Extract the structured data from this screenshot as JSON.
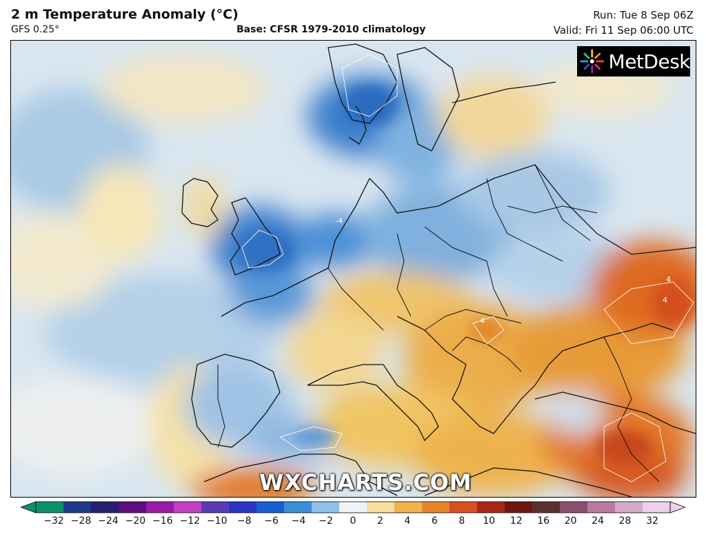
{
  "header": {
    "title": "2 m Temperature Anomaly (°C)",
    "model": "GFS 0.25°",
    "base": "Base: CFSR 1979-2010 climatology",
    "run": "Run: Tue 8 Sep 06Z",
    "valid": "Valid: Fri 11 Sep 06:00 UTC"
  },
  "logo": {
    "text": "MetDesk"
  },
  "watermark": "WXCHARTS.COM",
  "legend": {
    "ticks": [
      "−32",
      "−28",
      "−24",
      "−20",
      "−16",
      "−12",
      "−10",
      "−8",
      "−6",
      "−4",
      "−2",
      "0",
      "2",
      "4",
      "6",
      "8",
      "10",
      "12",
      "16",
      "20",
      "24",
      "28",
      "32"
    ],
    "colors": [
      "#0d8f6e",
      "#1f3a8a",
      "#2a1f6e",
      "#5c0f7a",
      "#9c1aa8",
      "#c43fc2",
      "#5b3bb5",
      "#2b35c4",
      "#1a5fcf",
      "#3a8fd8",
      "#8fc1e8",
      "#eef3f7",
      "#f6deA0",
      "#f0b44a",
      "#e8852a",
      "#d85020",
      "#a82818",
      "#6a1810",
      "#5a3030",
      "#8a5070",
      "#b87aa0",
      "#d8a8c8",
      "#f0d0e8"
    ]
  },
  "map": {
    "contour_label": "4",
    "negative_contour_label": "-4"
  }
}
